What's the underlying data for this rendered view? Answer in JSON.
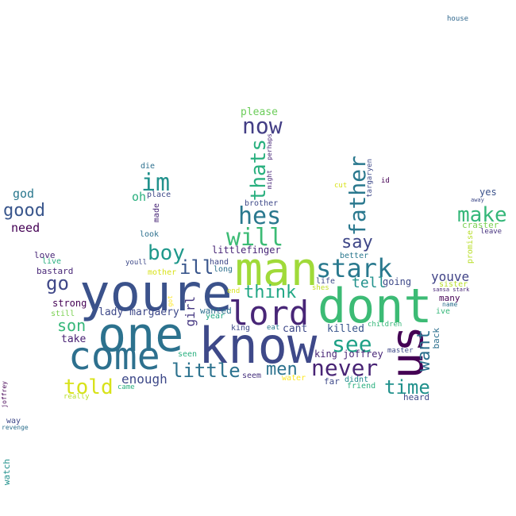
{
  "palette": {
    "dark_purple": "#440154",
    "indigo": "#3b528b",
    "blue": "#31688e",
    "teal": "#21918c",
    "green": "#35b779",
    "lime": "#90d743",
    "yellow": "#d8e219"
  },
  "words": [
    {
      "text": "dont",
      "color": "#3cbb75"
    },
    {
      "text": "youre",
      "color": "#3b528b"
    },
    {
      "text": "man",
      "color": "#a0da39"
    },
    {
      "text": "know",
      "color": "#3e4989"
    },
    {
      "text": "one",
      "color": "#2c728e"
    },
    {
      "text": "come",
      "color": "#2d708e"
    },
    {
      "text": "us",
      "color": "#440154"
    },
    {
      "text": "lord",
      "color": "#482677"
    },
    {
      "text": "stark",
      "color": "#29798e"
    },
    {
      "text": "father",
      "color": "#2a788e"
    },
    {
      "text": "thats",
      "color": "#2ab07f"
    },
    {
      "text": "now",
      "color": "#433e85"
    },
    {
      "text": "hes",
      "color": "#2a788e"
    },
    {
      "text": "will",
      "color": "#3cbb75"
    },
    {
      "text": "make",
      "color": "#35b779"
    },
    {
      "text": "im",
      "color": "#21918c"
    },
    {
      "text": "good",
      "color": "#39568c"
    },
    {
      "text": "boy",
      "color": "#1f988b"
    },
    {
      "text": "say",
      "color": "#3f4788"
    },
    {
      "text": "ill",
      "color": "#39568c"
    },
    {
      "text": "think",
      "color": "#22a785"
    },
    {
      "text": "see",
      "color": "#1fa187"
    },
    {
      "text": "never",
      "color": "#482475"
    },
    {
      "text": "want",
      "color": "#2d708e"
    },
    {
      "text": "time",
      "color": "#21918c"
    },
    {
      "text": "go",
      "color": "#3f4788"
    },
    {
      "text": "son",
      "color": "#35b779"
    },
    {
      "text": "told",
      "color": "#d8e219"
    },
    {
      "text": "little",
      "color": "#2c728e"
    },
    {
      "text": "men",
      "color": "#2c728e"
    },
    {
      "text": "enough",
      "color": "#3e4989"
    },
    {
      "text": "girl",
      "color": "#453781"
    },
    {
      "text": "tell",
      "color": "#21918c"
    },
    {
      "text": "youve",
      "color": "#414487"
    },
    {
      "text": "need",
      "color": "#440154"
    },
    {
      "text": "god",
      "color": "#2a788e"
    },
    {
      "text": "oh",
      "color": "#2ab07f"
    },
    {
      "text": "please",
      "color": "#6ccd5a"
    },
    {
      "text": "lady margaery",
      "color": "#3e4989"
    },
    {
      "text": "king joffrey",
      "color": "#482677"
    },
    {
      "text": "killed",
      "color": "#39568c"
    },
    {
      "text": "cant",
      "color": "#3e4989"
    },
    {
      "text": "going",
      "color": "#3e4989"
    },
    {
      "text": "take",
      "color": "#482173"
    },
    {
      "text": "littlefinger",
      "color": "#482677"
    },
    {
      "text": "strong",
      "color": "#440154"
    },
    {
      "text": "bastard",
      "color": "#482677"
    },
    {
      "text": "love",
      "color": "#482677"
    },
    {
      "text": "live",
      "color": "#29af7f"
    },
    {
      "text": "yes",
      "color": "#3b528b"
    },
    {
      "text": "craster",
      "color": "#7ad151"
    },
    {
      "text": "leave",
      "color": "#46327e"
    },
    {
      "text": "promise",
      "color": "#b8de29"
    },
    {
      "text": "sister",
      "color": "#b8de29"
    },
    {
      "text": "many",
      "color": "#440154"
    },
    {
      "text": "ive",
      "color": "#35b779"
    },
    {
      "text": "back",
      "color": "#2d708e"
    },
    {
      "text": "heard",
      "color": "#3e4989"
    },
    {
      "text": "far",
      "color": "#3e4989"
    },
    {
      "text": "didnt",
      "color": "#238a8d"
    },
    {
      "text": "friend",
      "color": "#2ab07f"
    },
    {
      "text": "master",
      "color": "#3e4989"
    },
    {
      "text": "children",
      "color": "#35b779"
    },
    {
      "text": "life",
      "color": "#3e4989"
    },
    {
      "text": "shes",
      "color": "#c2df23"
    },
    {
      "text": "better",
      "color": "#2a788e"
    },
    {
      "text": "water",
      "color": "#fde725"
    },
    {
      "text": "seem",
      "color": "#46327e"
    },
    {
      "text": "king",
      "color": "#3e4989"
    },
    {
      "text": "eat",
      "color": "#29798e"
    },
    {
      "text": "seen",
      "color": "#2ab07f"
    },
    {
      "text": "wanted",
      "color": "#2d708e"
    },
    {
      "text": "year",
      "color": "#22a785"
    },
    {
      "text": "end",
      "color": "#d8e219"
    },
    {
      "text": "hand",
      "color": "#3f4788"
    },
    {
      "text": "long",
      "color": "#2d708e"
    },
    {
      "text": "youll",
      "color": "#3e4989"
    },
    {
      "text": "mother",
      "color": "#d8e219"
    },
    {
      "text": "still",
      "color": "#7ad151"
    },
    {
      "text": "got",
      "color": "#fde725"
    },
    {
      "text": "came",
      "color": "#2ab07f"
    },
    {
      "text": "really",
      "color": "#b8de29"
    },
    {
      "text": "place",
      "color": "#3e4989"
    },
    {
      "text": "made",
      "color": "#482677"
    },
    {
      "text": "look",
      "color": "#2d708e"
    },
    {
      "text": "die",
      "color": "#2d708e"
    },
    {
      "text": "brother",
      "color": "#3e4989"
    },
    {
      "text": "might",
      "color": "#482677"
    },
    {
      "text": "perhaps",
      "color": "#482677"
    },
    {
      "text": "cut",
      "color": "#d8e219"
    },
    {
      "text": "id",
      "color": "#440154"
    },
    {
      "text": "targaryen",
      "color": "#3e4989"
    },
    {
      "text": "away",
      "color": "#3e4989"
    },
    {
      "text": "name",
      "color": "#2d708e"
    },
    {
      "text": "sansa stark",
      "color": "#482677"
    },
    {
      "text": "house",
      "color": "#31688e"
    },
    {
      "text": "joffrey",
      "color": "#440154"
    },
    {
      "text": "way",
      "color": "#3e4989"
    },
    {
      "text": "revenge",
      "color": "#2d708e"
    },
    {
      "text": "watch",
      "color": "#21918c"
    }
  ]
}
